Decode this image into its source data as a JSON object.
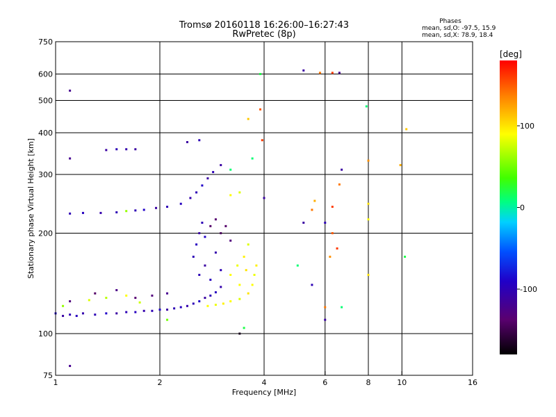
{
  "chart_data": {
    "type": "scatter",
    "title": "Tromsø 20160118 16:26:00–16:27:43",
    "subtitle": "RwPretec (8p)",
    "xlabel": "Frequency [MHz]",
    "ylabel": "Stationary phase Virtual Height [km]",
    "x_scale": "log",
    "y_scale": "log",
    "xlim": [
      1,
      16
    ],
    "ylim": [
      75,
      750
    ],
    "x_ticks": [
      1,
      2,
      4,
      6,
      8,
      10,
      16
    ],
    "y_ticks": [
      75,
      100,
      200,
      300,
      400,
      500,
      600,
      750
    ],
    "grid_x": [
      2,
      4,
      6,
      8,
      10
    ],
    "grid_y": [
      100,
      200,
      300,
      400,
      500,
      600
    ],
    "legend": {
      "heading": "Phases",
      "lines": [
        "mean, sd,O: -97.5, 15.9",
        "mean, sd,X: 78.9, 18.4"
      ],
      "placement": "top-right"
    },
    "colorbar": {
      "label": "[deg]",
      "range": [
        -180,
        180
      ],
      "ticks": [
        100,
        0,
        -100
      ],
      "placement": "right"
    },
    "series": [
      {
        "values": [
          {
            "x": 1.0,
            "y": 115,
            "c": -90
          },
          {
            "x": 1.05,
            "y": 113,
            "c": -110
          },
          {
            "x": 1.1,
            "y": 114,
            "c": -100
          },
          {
            "x": 1.15,
            "y": 113,
            "c": -95
          },
          {
            "x": 1.2,
            "y": 115,
            "c": -105
          },
          {
            "x": 1.3,
            "y": 114,
            "c": -100
          },
          {
            "x": 1.4,
            "y": 115,
            "c": -90
          },
          {
            "x": 1.5,
            "y": 115,
            "c": -110
          },
          {
            "x": 1.6,
            "y": 116,
            "c": -100
          },
          {
            "x": 1.7,
            "y": 116,
            "c": -95
          },
          {
            "x": 1.8,
            "y": 117,
            "c": -105
          },
          {
            "x": 1.9,
            "y": 117,
            "c": -100
          },
          {
            "x": 2.0,
            "y": 118,
            "c": -90
          },
          {
            "x": 2.1,
            "y": 118,
            "c": -110
          },
          {
            "x": 2.2,
            "y": 119,
            "c": -100
          },
          {
            "x": 2.3,
            "y": 120,
            "c": -95
          },
          {
            "x": 2.4,
            "y": 121,
            "c": -105
          },
          {
            "x": 2.5,
            "y": 123,
            "c": -100
          },
          {
            "x": 2.6,
            "y": 125,
            "c": -90
          },
          {
            "x": 2.7,
            "y": 128,
            "c": -110
          },
          {
            "x": 2.8,
            "y": 130,
            "c": -100
          },
          {
            "x": 2.9,
            "y": 133,
            "c": -95
          },
          {
            "x": 3.0,
            "y": 138,
            "c": -105
          },
          {
            "x": 1.05,
            "y": 121,
            "c": 60
          },
          {
            "x": 1.25,
            "y": 126,
            "c": 80
          },
          {
            "x": 1.4,
            "y": 128,
            "c": 70
          },
          {
            "x": 1.6,
            "y": 130,
            "c": 90
          },
          {
            "x": 1.75,
            "y": 124,
            "c": 75
          },
          {
            "x": 1.1,
            "y": 125,
            "c": -130
          },
          {
            "x": 1.3,
            "y": 132,
            "c": -140
          },
          {
            "x": 1.5,
            "y": 135,
            "c": -125
          },
          {
            "x": 1.7,
            "y": 128,
            "c": -135
          },
          {
            "x": 1.9,
            "y": 130,
            "c": -130
          },
          {
            "x": 2.1,
            "y": 132,
            "c": -120
          },
          {
            "x": 1.1,
            "y": 229,
            "c": -100
          },
          {
            "x": 1.2,
            "y": 230,
            "c": -95
          },
          {
            "x": 1.35,
            "y": 230,
            "c": -105
          },
          {
            "x": 1.5,
            "y": 231,
            "c": -100
          },
          {
            "x": 1.6,
            "y": 233,
            "c": 60
          },
          {
            "x": 1.7,
            "y": 234,
            "c": -100
          },
          {
            "x": 1.8,
            "y": 235,
            "c": -90
          },
          {
            "x": 1.95,
            "y": 238,
            "c": -110
          },
          {
            "x": 2.1,
            "y": 240,
            "c": -100
          },
          {
            "x": 2.3,
            "y": 245,
            "c": -95
          },
          {
            "x": 2.45,
            "y": 255,
            "c": -105
          },
          {
            "x": 2.55,
            "y": 265,
            "c": -100
          },
          {
            "x": 2.65,
            "y": 278,
            "c": -90
          },
          {
            "x": 2.75,
            "y": 292,
            "c": -110
          },
          {
            "x": 2.85,
            "y": 305,
            "c": -100
          },
          {
            "x": 2.5,
            "y": 170,
            "c": -100
          },
          {
            "x": 2.55,
            "y": 185,
            "c": -95
          },
          {
            "x": 2.6,
            "y": 200,
            "c": -110
          },
          {
            "x": 2.65,
            "y": 215,
            "c": -100
          },
          {
            "x": 2.7,
            "y": 195,
            "c": -90
          },
          {
            "x": 2.8,
            "y": 210,
            "c": -140
          },
          {
            "x": 2.9,
            "y": 220,
            "c": -135
          },
          {
            "x": 3.0,
            "y": 200,
            "c": -145
          },
          {
            "x": 3.1,
            "y": 210,
            "c": -140
          },
          {
            "x": 3.2,
            "y": 190,
            "c": -130
          },
          {
            "x": 2.6,
            "y": 150,
            "c": -100
          },
          {
            "x": 2.7,
            "y": 160,
            "c": -110
          },
          {
            "x": 2.8,
            "y": 145,
            "c": -95
          },
          {
            "x": 2.9,
            "y": 175,
            "c": -105
          },
          {
            "x": 3.0,
            "y": 155,
            "c": -100
          },
          {
            "x": 2.75,
            "y": 121,
            "c": 90
          },
          {
            "x": 2.9,
            "y": 122,
            "c": 85
          },
          {
            "x": 3.05,
            "y": 123,
            "c": 95
          },
          {
            "x": 3.2,
            "y": 125,
            "c": 90
          },
          {
            "x": 3.4,
            "y": 127,
            "c": 80
          },
          {
            "x": 3.6,
            "y": 132,
            "c": 100
          },
          {
            "x": 3.7,
            "y": 140,
            "c": 90
          },
          {
            "x": 3.75,
            "y": 150,
            "c": 85
          },
          {
            "x": 3.8,
            "y": 160,
            "c": 95
          },
          {
            "x": 3.2,
            "y": 150,
            "c": 90
          },
          {
            "x": 3.35,
            "y": 160,
            "c": 85
          },
          {
            "x": 3.5,
            "y": 170,
            "c": 95
          },
          {
            "x": 3.6,
            "y": 185,
            "c": 80
          },
          {
            "x": 3.4,
            "y": 140,
            "c": 90
          },
          {
            "x": 3.55,
            "y": 155,
            "c": 100
          },
          {
            "x": 1.1,
            "y": 535,
            "c": -120
          },
          {
            "x": 1.1,
            "y": 335,
            "c": -120
          },
          {
            "x": 1.1,
            "y": 80,
            "c": -120
          },
          {
            "x": 1.4,
            "y": 355,
            "c": -110
          },
          {
            "x": 1.5,
            "y": 357,
            "c": -100
          },
          {
            "x": 1.6,
            "y": 357,
            "c": -105
          },
          {
            "x": 1.7,
            "y": 357,
            "c": -110
          },
          {
            "x": 2.4,
            "y": 375,
            "c": -110
          },
          {
            "x": 2.6,
            "y": 380,
            "c": -100
          },
          {
            "x": 3.0,
            "y": 320,
            "c": -110
          },
          {
            "x": 3.2,
            "y": 310,
            "c": 10
          },
          {
            "x": 3.9,
            "y": 470,
            "c": 150
          },
          {
            "x": 3.95,
            "y": 380,
            "c": 160
          },
          {
            "x": 3.9,
            "y": 600,
            "c": 20
          },
          {
            "x": 5.2,
            "y": 615,
            "c": -110
          },
          {
            "x": 5.8,
            "y": 605,
            "c": 140
          },
          {
            "x": 6.3,
            "y": 605,
            "c": 160
          },
          {
            "x": 6.6,
            "y": 605,
            "c": -120
          },
          {
            "x": 7.9,
            "y": 480,
            "c": 10
          },
          {
            "x": 8.0,
            "y": 330,
            "c": 130
          },
          {
            "x": 9.9,
            "y": 320,
            "c": 120
          },
          {
            "x": 10.3,
            "y": 410,
            "c": 110
          },
          {
            "x": 6.7,
            "y": 310,
            "c": -110
          },
          {
            "x": 6.6,
            "y": 280,
            "c": 140
          },
          {
            "x": 5.5,
            "y": 235,
            "c": 140
          },
          {
            "x": 5.6,
            "y": 250,
            "c": 120
          },
          {
            "x": 5.2,
            "y": 215,
            "c": -110
          },
          {
            "x": 6.0,
            "y": 215,
            "c": -100
          },
          {
            "x": 6.3,
            "y": 240,
            "c": 160
          },
          {
            "x": 6.3,
            "y": 200,
            "c": 150
          },
          {
            "x": 6.2,
            "y": 170,
            "c": 130
          },
          {
            "x": 6.5,
            "y": 180,
            "c": 160
          },
          {
            "x": 8.0,
            "y": 245,
            "c": 100
          },
          {
            "x": 8.0,
            "y": 220,
            "c": 90
          },
          {
            "x": 8.0,
            "y": 150,
            "c": 100
          },
          {
            "x": 10.2,
            "y": 170,
            "c": 20
          },
          {
            "x": 5.0,
            "y": 160,
            "c": 10
          },
          {
            "x": 5.5,
            "y": 140,
            "c": -100
          },
          {
            "x": 6.0,
            "y": 110,
            "c": -110
          },
          {
            "x": 6.0,
            "y": 120,
            "c": 140
          },
          {
            "x": 6.7,
            "y": 120,
            "c": 10
          },
          {
            "x": 3.5,
            "y": 104,
            "c": 20
          },
          {
            "x": 3.4,
            "y": 100,
            "c": -170
          },
          {
            "x": 2.1,
            "y": 110,
            "c": 50
          },
          {
            "x": 3.2,
            "y": 260,
            "c": 90
          },
          {
            "x": 3.4,
            "y": 265,
            "c": 80
          },
          {
            "x": 3.6,
            "y": 440,
            "c": 110
          },
          {
            "x": 4.0,
            "y": 255,
            "c": -110
          },
          {
            "x": 3.7,
            "y": 335,
            "c": 10
          }
        ]
      }
    ]
  }
}
